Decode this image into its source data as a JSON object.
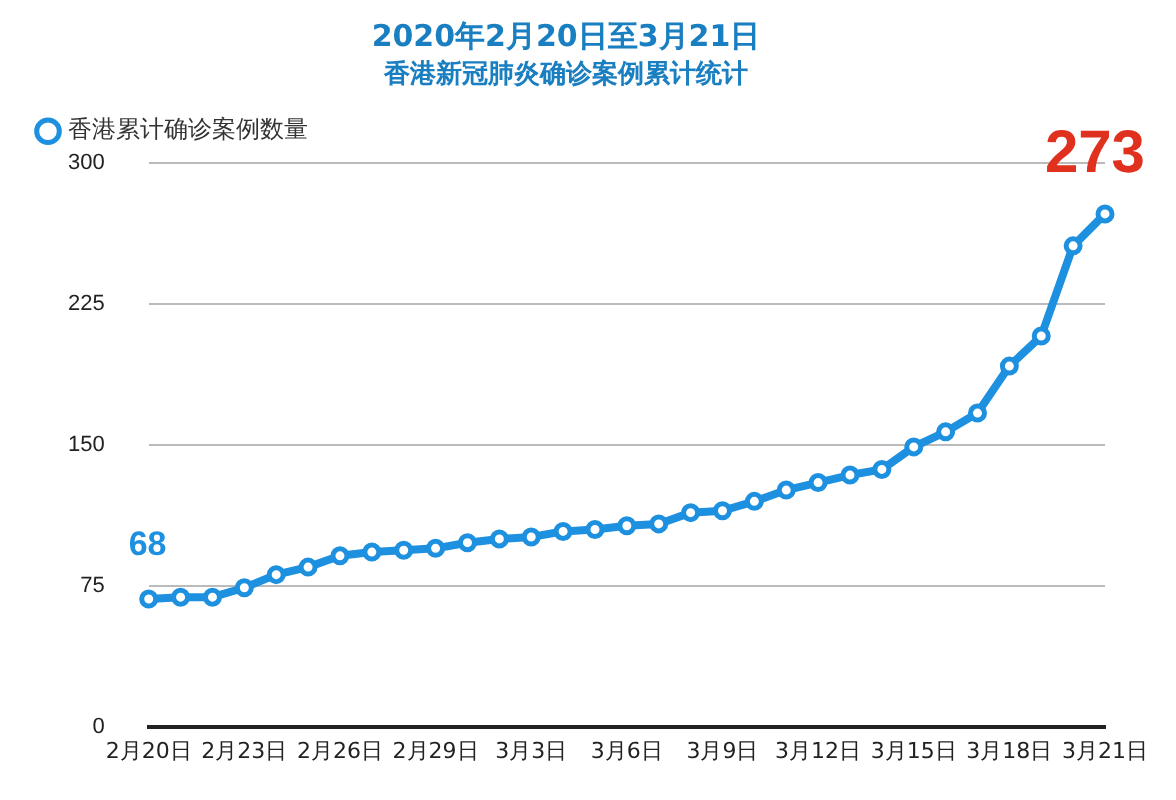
{
  "chart_data": {
    "type": "line",
    "title": "2020年2月20日至3月21日",
    "subtitle": "香港新冠肺炎确诊案例累计统计",
    "categories": [
      "2月20日",
      null,
      null,
      "2月23日",
      null,
      null,
      "2月26日",
      null,
      null,
      "2月29日",
      null,
      null,
      "3月3日",
      null,
      null,
      "3月6日",
      null,
      null,
      "3月9日",
      null,
      null,
      "3月12日",
      null,
      null,
      "3月15日",
      null,
      null,
      "3月18日",
      null,
      null,
      "3月21日"
    ],
    "series": [
      {
        "name": "香港累计确诊案例数量",
        "color": "#1e90e0",
        "values": [
          68,
          69,
          69,
          74,
          81,
          85,
          91,
          93,
          94,
          95,
          98,
          100,
          101,
          104,
          105,
          107,
          108,
          114,
          115,
          120,
          126,
          130,
          134,
          137,
          149,
          157,
          167,
          192,
          208,
          256,
          273
        ],
        "value_labels": [
          "68",
          null,
          null,
          null,
          null,
          null,
          null,
          null,
          null,
          null,
          null,
          null,
          null,
          null,
          null,
          null,
          null,
          null,
          null,
          null,
          null,
          null,
          null,
          null,
          null,
          null,
          null,
          null,
          null,
          null,
          "273"
        ]
      }
    ],
    "ylim": [
      0,
      300
    ],
    "yticks": [
      0,
      75,
      150,
      225,
      300
    ],
    "grid": "y",
    "legend": "top left",
    "marker": "circle",
    "line_style": "solid"
  }
}
